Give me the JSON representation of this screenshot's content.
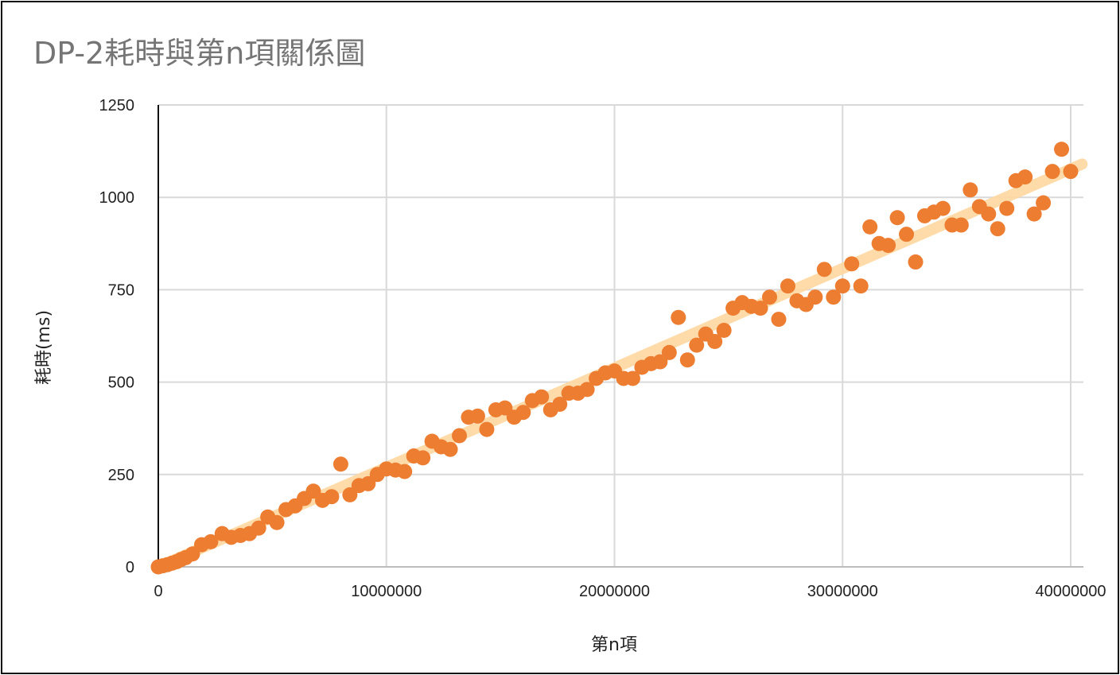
{
  "chart_data": {
    "type": "scatter",
    "title": "DP-2耗時與第n項關係圖",
    "xlabel": "第n項",
    "ylabel": "耗時(ms)",
    "xlim": [
      0,
      40000000
    ],
    "ylim": [
      0,
      1250
    ],
    "x_ticks": [
      "0",
      "10000000",
      "20000000",
      "30000000",
      "40000000"
    ],
    "y_ticks": [
      "0",
      "250",
      "500",
      "750",
      "1000",
      "1250"
    ],
    "grid": true,
    "point_color": "#ED7D31",
    "trendline": {
      "type": "linear",
      "color": "#FFD8A0",
      "x": [
        0,
        40500000
      ],
      "y": [
        0,
        1090
      ]
    },
    "x": [
      0,
      200000,
      400000,
      600000,
      800000,
      1000000,
      1200000,
      1500000,
      1900000,
      2300000,
      2800000,
      3200000,
      3600000,
      4000000,
      4400000,
      4800000,
      5200000,
      5600000,
      6000000,
      6400000,
      6800000,
      7200000,
      7600000,
      8000000,
      8400000,
      8800000,
      9200000,
      9600000,
      10000000,
      10400000,
      10800000,
      11200000,
      11600000,
      12000000,
      12400000,
      12800000,
      13200000,
      13600000,
      14000000,
      14400000,
      14800000,
      15200000,
      15600000,
      16000000,
      16400000,
      16800000,
      17200000,
      17600000,
      18000000,
      18400000,
      18800000,
      19200000,
      19600000,
      20000000,
      20400000,
      20800000,
      21200000,
      21600000,
      22000000,
      22400000,
      22800000,
      23200000,
      23600000,
      24000000,
      24400000,
      24800000,
      25200000,
      25600000,
      26000000,
      26400000,
      26800000,
      27200000,
      27600000,
      28000000,
      28400000,
      28800000,
      29200000,
      29600000,
      30000000,
      30400000,
      30800000,
      31200000,
      31600000,
      32000000,
      32400000,
      32800000,
      33200000,
      33600000,
      34000000,
      34400000,
      34800000,
      35200000,
      35600000,
      36000000,
      36400000,
      36800000,
      37200000,
      37600000,
      38000000,
      38400000,
      38800000,
      39200000,
      39600000,
      40000000
    ],
    "y": [
      0,
      3,
      6,
      10,
      14,
      20,
      25,
      35,
      60,
      68,
      90,
      80,
      85,
      90,
      105,
      135,
      120,
      155,
      165,
      185,
      205,
      180,
      190,
      278,
      195,
      220,
      225,
      250,
      265,
      262,
      258,
      300,
      295,
      340,
      325,
      318,
      355,
      405,
      408,
      372,
      425,
      430,
      405,
      418,
      450,
      460,
      425,
      440,
      470,
      470,
      480,
      510,
      525,
      530,
      510,
      510,
      540,
      550,
      555,
      580,
      675,
      560,
      600,
      630,
      610,
      640,
      700,
      715,
      705,
      700,
      730,
      670,
      760,
      720,
      710,
      730,
      805,
      730,
      760,
      820,
      760,
      920,
      875,
      870,
      945,
      900,
      825,
      950,
      960,
      970,
      925,
      925,
      1020,
      975,
      955,
      915,
      970,
      1045,
      1055,
      955,
      985,
      1070,
      1130,
      1070
    ]
  }
}
